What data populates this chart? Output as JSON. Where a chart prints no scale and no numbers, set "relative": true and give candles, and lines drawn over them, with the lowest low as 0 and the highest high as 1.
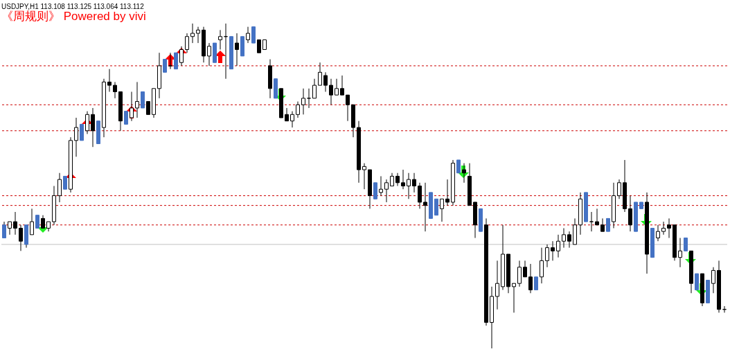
{
  "chart_data": {
    "type": "candlestick",
    "title": "USDJPY,H1  113.108 113.125 113.064 113.112",
    "subtitle": "《周规则》 Powered by vivi",
    "relative": true,
    "categories": [
      null,
      null,
      null,
      null,
      null,
      null,
      null,
      null,
      null,
      null,
      null,
      null,
      null,
      null,
      null,
      null,
      null,
      null,
      null,
      null,
      null,
      null,
      null,
      null,
      null,
      null,
      null,
      null,
      null,
      null,
      null,
      null,
      null,
      null,
      null,
      null,
      null,
      null,
      null,
      null,
      null,
      null,
      null,
      null,
      null,
      null,
      null,
      null,
      null,
      null,
      null,
      null,
      null,
      null,
      null,
      null,
      null,
      null,
      null,
      null,
      null,
      null,
      null,
      null,
      null,
      null,
      null,
      null,
      null,
      null,
      null,
      null,
      null,
      null,
      null,
      null,
      null,
      null,
      null,
      null,
      null,
      null,
      null,
      null,
      null,
      null,
      null,
      null,
      null,
      null,
      null,
      null,
      null,
      null,
      null,
      null,
      null,
      null,
      null,
      null,
      null,
      null,
      null,
      null,
      null,
      null,
      null,
      null,
      null,
      null,
      null,
      null,
      null,
      null,
      null,
      null,
      null,
      null,
      null,
      null,
      null,
      null,
      null,
      null,
      null,
      null,
      null,
      null,
      null,
      null,
      null
    ],
    "ohlc": [
      [
        0.38,
        0.39,
        0.34,
        0.34
      ],
      [
        0.37,
        0.39,
        0.35,
        0.39
      ],
      [
        0.39,
        0.42,
        0.35,
        0.37
      ],
      [
        0.37,
        0.38,
        0.3,
        0.33
      ],
      [
        0.38,
        0.38,
        0.31,
        0.32
      ],
      [
        0.35,
        0.43,
        0.35,
        0.39
      ],
      [
        0.41,
        0.41,
        0.37,
        0.37
      ],
      [
        0.4,
        0.41,
        0.37,
        0.37
      ],
      [
        0.37,
        0.39,
        0.36,
        0.39
      ],
      [
        0.39,
        0.5,
        0.38,
        0.47
      ],
      [
        0.47,
        0.54,
        0.45,
        0.52
      ],
      [
        0.53,
        0.53,
        0.49,
        0.49
      ],
      [
        0.49,
        0.65,
        0.48,
        0.64
      ],
      [
        0.64,
        0.71,
        0.59,
        0.68
      ],
      [
        0.69,
        0.69,
        0.64,
        0.64
      ],
      [
        0.67,
        0.73,
        0.66,
        0.72
      ],
      [
        0.72,
        0.74,
        0.62,
        0.67
      ],
      [
        0.7,
        0.7,
        0.63,
        0.63
      ],
      [
        0.68,
        0.83,
        0.65,
        0.82
      ],
      [
        0.82,
        0.86,
        0.79,
        0.81
      ],
      [
        0.81,
        0.82,
        0.77,
        0.79
      ],
      [
        0.79,
        0.79,
        0.67,
        0.7
      ],
      [
        0.73,
        0.73,
        0.69,
        0.69
      ],
      [
        0.71,
        0.79,
        0.7,
        0.74
      ],
      [
        0.74,
        0.82,
        0.71,
        0.76
      ],
      [
        0.79,
        0.79,
        0.74,
        0.74
      ],
      [
        0.76,
        0.76,
        0.72,
        0.72
      ],
      [
        0.72,
        0.8,
        0.71,
        0.8
      ],
      [
        0.8,
        0.91,
        0.77,
        0.87
      ],
      [
        0.89,
        0.89,
        0.85,
        0.85
      ],
      [
        0.87,
        0.91,
        0.86,
        0.87
      ],
      [
        0.91,
        0.91,
        0.86,
        0.86
      ],
      [
        0.88,
        0.93,
        0.87,
        0.92
      ],
      [
        0.92,
        0.97,
        0.91,
        0.96
      ],
      [
        0.96,
        1,
        0.94,
        0.97
      ],
      [
        0.97,
        0.99,
        0.94,
        0.98
      ],
      [
        0.98,
        0.99,
        0.88,
        0.9
      ],
      [
        0.9,
        0.94,
        0.87,
        0.93
      ],
      [
        0.94,
        0.94,
        0.88,
        0.88
      ],
      [
        0.95,
        0.98,
        0.92,
        0.96
      ],
      [
        0.96,
        1,
        0.83,
        0.96
      ],
      [
        0.96,
        0.96,
        0.86,
        0.86
      ],
      [
        0.94,
        0.97,
        0.87,
        0.92
      ],
      [
        0.96,
        0.96,
        0.9,
        0.9
      ],
      [
        0.95,
        0.99,
        0.94,
        0.97
      ],
      [
        0.99,
        0.99,
        0.94,
        0.94
      ],
      [
        0.95,
        0.95,
        0.91,
        0.91
      ],
      [
        0.92,
        0.95,
        0.92,
        0.95
      ],
      [
        0.87,
        0.89,
        0.77,
        0.8
      ],
      [
        0.83,
        0.83,
        0.77,
        0.77
      ],
      [
        0.8,
        0.8,
        0.71,
        0.71
      ],
      [
        0.72,
        0.74,
        0.7,
        0.7
      ],
      [
        0.7,
        0.73,
        0.68,
        0.72
      ],
      [
        0.72,
        0.76,
        0.71,
        0.75
      ],
      [
        0.75,
        0.8,
        0.72,
        0.77
      ],
      [
        0.77,
        0.8,
        0.74,
        0.77
      ],
      [
        0.77,
        0.83,
        0.77,
        0.81
      ],
      [
        0.81,
        0.88,
        0.81,
        0.85
      ],
      [
        0.84,
        0.85,
        0.79,
        0.81
      ],
      [
        0.81,
        0.83,
        0.75,
        0.78
      ],
      [
        0.78,
        0.83,
        0.78,
        0.8
      ],
      [
        0.8,
        0.84,
        0.78,
        0.78
      ],
      [
        0.78,
        0.78,
        0.7,
        0.75
      ],
      [
        0.75,
        0.75,
        0.65,
        0.68
      ],
      [
        0.68,
        0.7,
        0.51,
        0.55
      ],
      [
        0.55,
        0.57,
        0.49,
        0.56
      ],
      [
        0.55,
        0.55,
        0.43,
        0.47
      ],
      [
        0.51,
        0.51,
        0.46,
        0.46
      ],
      [
        0.48,
        0.53,
        0.47,
        0.49
      ],
      [
        0.49,
        0.52,
        0.45,
        0.51
      ],
      [
        0.5,
        0.54,
        0.5,
        0.53
      ],
      [
        0.53,
        0.54,
        0.5,
        0.51
      ],
      [
        0.51,
        0.55,
        0.49,
        0.5
      ],
      [
        0.5,
        0.54,
        0.46,
        0.52
      ],
      [
        0.52,
        0.54,
        0.48,
        0.5
      ],
      [
        0.5,
        0.51,
        0.43,
        0.45
      ],
      [
        0.45,
        0.51,
        0.36,
        0.44
      ],
      [
        0.48,
        0.48,
        0.4,
        0.4
      ],
      [
        0.46,
        0.46,
        0.41,
        0.41
      ],
      [
        0.43,
        0.46,
        0.39,
        0.46
      ],
      [
        0.46,
        0.52,
        0.44,
        0.45
      ],
      [
        0.45,
        0.58,
        0.44,
        0.57
      ],
      [
        0.58,
        0.58,
        0.54,
        0.54
      ],
      [
        0.55,
        0.57,
        0.51,
        0.54
      ],
      [
        0.53,
        0.57,
        0.44,
        0.44
      ],
      [
        0.45,
        0.45,
        0.34,
        0.38
      ],
      [
        0.43,
        0.43,
        0.36,
        0.36
      ],
      [
        0.38,
        0.4,
        0.07,
        0.08
      ],
      [
        0.08,
        0.19,
        0,
        0.16
      ],
      [
        0.16,
        0.27,
        0.12,
        0.2
      ],
      [
        0.19,
        0.38,
        0.18,
        0.29
      ],
      [
        0.29,
        0.29,
        0.17,
        0.19
      ],
      [
        0.19,
        0.2,
        0.11,
        0.2
      ],
      [
        0.2,
        0.27,
        0.19,
        0.25
      ],
      [
        0.25,
        0.27,
        0.22,
        0.22
      ],
      [
        0.22,
        0.26,
        0.17,
        0.18
      ],
      [
        0.22,
        0.22,
        0.18,
        0.18
      ],
      [
        0.22,
        0.31,
        0.2,
        0.27
      ],
      [
        0.27,
        0.32,
        0.25,
        0.31
      ],
      [
        0.31,
        0.33,
        0.27,
        0.3
      ],
      [
        0.3,
        0.35,
        0.28,
        0.33
      ],
      [
        0.33,
        0.37,
        0.31,
        0.35
      ],
      [
        0.35,
        0.36,
        0.31,
        0.33
      ],
      [
        0.32,
        0.4,
        0.32,
        0.38
      ],
      [
        0.38,
        0.48,
        0.35,
        0.46
      ],
      [
        0.48,
        0.48,
        0.39,
        0.39
      ],
      [
        0.39,
        0.42,
        0.36,
        0.39
      ],
      [
        0.39,
        0.43,
        0.38,
        0.38
      ],
      [
        0.38,
        0.4,
        0.36,
        0.36
      ],
      [
        0.4,
        0.4,
        0.36,
        0.36
      ],
      [
        0.39,
        0.51,
        0.37,
        0.47
      ],
      [
        0.47,
        0.52,
        0.46,
        0.51
      ],
      [
        0.51,
        0.58,
        0.42,
        0.43
      ],
      [
        0.43,
        0.47,
        0.36,
        0.38
      ],
      [
        0.45,
        0.45,
        0.36,
        0.36
      ],
      [
        0.45,
        0.45,
        0.43,
        0.43
      ],
      [
        0.45,
        0.48,
        0.23,
        0.29
      ],
      [
        0.37,
        0.37,
        0.28,
        0.28
      ],
      [
        0.34,
        0.38,
        0.33,
        0.36
      ],
      [
        0.36,
        0.39,
        0.35,
        0.37
      ],
      [
        0.38,
        0.4,
        0.34,
        0.37
      ],
      [
        0.38,
        0.38,
        0.27,
        0.28
      ],
      [
        0.28,
        0.34,
        0.25,
        0.3
      ],
      [
        0.34,
        0.34,
        0.3,
        0.3
      ],
      [
        0.3,
        0.3,
        0.17,
        0.2
      ],
      [
        0.23,
        0.23,
        0.18,
        0.18
      ],
      [
        0.23,
        0.23,
        0.13,
        0.14
      ],
      [
        0.21,
        0.21,
        0.14,
        0.14
      ],
      [
        0.2,
        0.25,
        0.17,
        0.24
      ],
      [
        0.24,
        0.27,
        0.11,
        0.12
      ],
      [
        0.12,
        0.13,
        0.11,
        0.12
      ]
    ],
    "colors": [
      "#4472c4",
      "#ffffff",
      "#000000",
      "#000000",
      "#4472c4",
      "#ffffff",
      "#4472c4",
      "#000000",
      "#ffffff",
      "#ffffff",
      "#ffffff",
      "#4472c4",
      "#ffffff",
      "#ffffff",
      "#4472c4",
      "#ffffff",
      "#000000",
      "#4472c4",
      "#ffffff",
      "#000000",
      "#000000",
      "#000000",
      "#4472c4",
      "#ffffff",
      "#ffffff",
      "#4472c4",
      "#000000",
      "#ffffff",
      "#ffffff",
      "#4472c4",
      "#000000",
      "#4472c4",
      "#ffffff",
      "#ffffff",
      "#ffffff",
      "#ffffff",
      "#000000",
      "#ffffff",
      "#4472c4",
      "#ffffff",
      "#000000",
      "#4472c4",
      "#000000",
      "#4472c4",
      "#ffffff",
      "#4472c4",
      "#000000",
      "#ffffff",
      "#000000",
      "#4472c4",
      "#000000",
      "#000000",
      "#ffffff",
      "#ffffff",
      "#ffffff",
      "#000000",
      "#ffffff",
      "#ffffff",
      "#000000",
      "#000000",
      "#ffffff",
      "#000000",
      "#000000",
      "#000000",
      "#000000",
      "#ffffff",
      "#000000",
      "#4472c4",
      "#ffffff",
      "#ffffff",
      "#ffffff",
      "#000000",
      "#000000",
      "#ffffff",
      "#000000",
      "#000000",
      "#000000",
      "#4472c4",
      "#4472c4",
      "#ffffff",
      "#000000",
      "#ffffff",
      "#4472c4",
      "#000000",
      "#000000",
      "#000000",
      "#4472c4",
      "#000000",
      "#ffffff",
      "#ffffff",
      "#ffffff",
      "#000000",
      "#ffffff",
      "#ffffff",
      "#000000",
      "#000000",
      "#4472c4",
      "#ffffff",
      "#ffffff",
      "#000000",
      "#ffffff",
      "#ffffff",
      "#000000",
      "#ffffff",
      "#ffffff",
      "#4472c4",
      "#000000",
      "#000000",
      "#000000",
      "#4472c4",
      "#ffffff",
      "#ffffff",
      "#000000",
      "#000000",
      "#4472c4",
      "#4472c4",
      "#000000",
      "#4472c4",
      "#ffffff",
      "#ffffff",
      "#000000",
      "#000000",
      "#ffffff",
      "#4472c4",
      "#000000",
      "#4472c4",
      "#000000",
      "#4472c4",
      "#ffffff",
      "#000000",
      "#000000"
    ],
    "ref_lines": [
      {
        "axis": "y",
        "value": 0.32,
        "color": "#c0c0c0",
        "line_style": "solid"
      },
      {
        "axis": "y",
        "value": 0.44,
        "color": "#cc0000",
        "line_style": "dashed"
      },
      {
        "axis": "y",
        "value": 0.67,
        "color": "#cc0000",
        "line_style": "dashed"
      },
      {
        "axis": "y",
        "value": 0.87,
        "color": "#cc0000",
        "line_style": "dashed"
      },
      {
        "axis": "y",
        "value": 0.75,
        "color": "#cc0000",
        "line_style": "dashed"
      },
      {
        "axis": "y",
        "value": 0.38,
        "color": "#cc0000",
        "line_style": "dashed"
      },
      {
        "axis": "y",
        "value": 0.47,
        "color": "#cc0000",
        "line_style": "dashed"
      }
    ]
  }
}
